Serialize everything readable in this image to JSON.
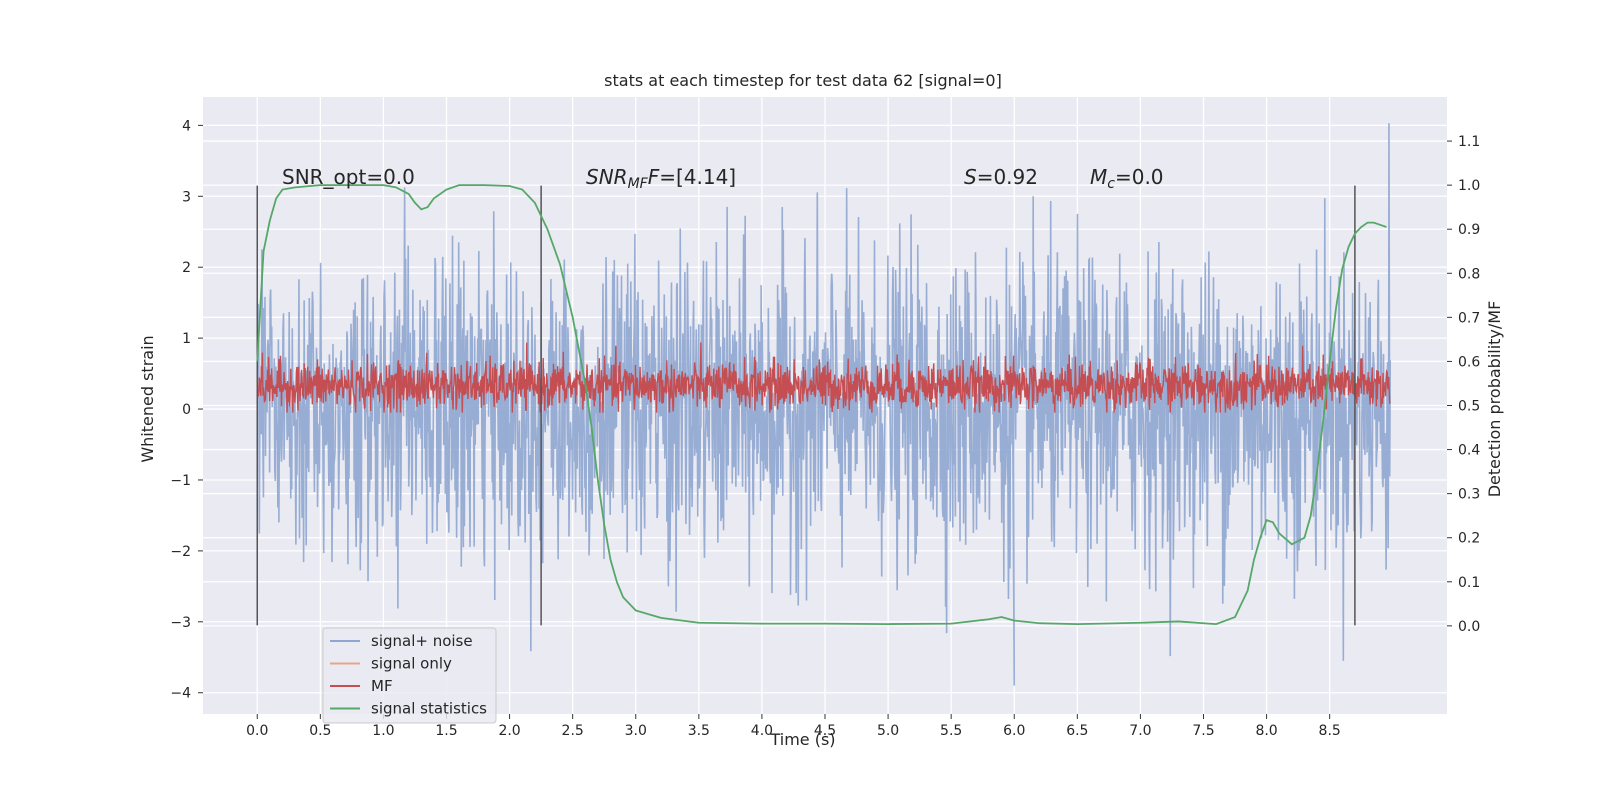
{
  "chart_data": {
    "type": "line",
    "title": "stats at each timestep for test data 62 [signal=0]",
    "xlabel": "Time (s)",
    "ylabel_left": "Whitened strain",
    "ylabel_right": "Detection probability/MF",
    "xlim": [
      -0.43,
      9.43
    ],
    "ylim_left": [
      -4.3,
      4.4
    ],
    "ylim_right": [
      -0.2,
      1.2
    ],
    "x_ticks": [
      0.0,
      0.5,
      1.0,
      1.5,
      2.0,
      2.5,
      3.0,
      3.5,
      4.0,
      4.5,
      5.0,
      5.5,
      6.0,
      6.5,
      7.0,
      7.5,
      8.0,
      8.5
    ],
    "x_tick_labels": [
      "0.0",
      "0.5",
      "1.0",
      "1.5",
      "2.0",
      "2.5",
      "3.0",
      "3.5",
      "4.0",
      "4.5",
      "5.0",
      "5.5",
      "6.0",
      "6.5",
      "7.0",
      "7.5",
      "8.0",
      "8.5"
    ],
    "y_ticks_left": [
      4,
      3,
      2,
      1,
      0,
      -1,
      -2,
      -3,
      -4
    ],
    "y_tick_labels_left": [
      "4",
      "3",
      "2",
      "1",
      "0",
      "−1",
      "−2",
      "−3",
      "−4"
    ],
    "y_ticks_right": [
      1.1,
      1.0,
      0.9,
      0.8,
      0.7,
      0.6,
      0.5,
      0.4,
      0.3,
      0.2,
      0.1,
      0.0
    ],
    "y_tick_labels_right": [
      "1.1",
      "1.0",
      "0.9",
      "0.8",
      "0.7",
      "0.6",
      "0.5",
      "0.4",
      "0.3",
      "0.2",
      "0.1",
      "0.0"
    ],
    "grid": true,
    "legend_placement": "lower-left",
    "legend": [
      {
        "name": "signal+ noise",
        "color": "#8fa6d0"
      },
      {
        "name": "signal only",
        "color": "#e8a58c"
      },
      {
        "name": "MF",
        "color": "#c44e52"
      },
      {
        "name": "signal statistics",
        "color": "#55a868"
      }
    ],
    "annotations": {
      "snr_opt": "SNR_opt=0.0",
      "snr_mf_prefix": "SNR",
      "snr_mf_sub": "MF",
      "snr_mf_value": "=[4.14]",
      "s_prefix": "S",
      "s_value": "=0.92",
      "mc_prefix": "M",
      "mc_sub": "c",
      "mc_value": "=0.0"
    },
    "vertical_markers_x": [
      0.0,
      2.25,
      8.7
    ],
    "series": [
      {
        "name": "signal+ noise",
        "axis": "left",
        "x_range": [
          0.0,
          8.98
        ],
        "typical_range": [
          -1.3,
          1.3
        ],
        "max": 4.03,
        "min": -3.9
      },
      {
        "name": "MF",
        "axis": "left",
        "x_range": [
          0.0,
          8.98
        ],
        "typical_range": [
          0.05,
          0.65
        ],
        "max": 1.1,
        "min": -0.05
      },
      {
        "name": "signal statistics",
        "axis": "right",
        "x": [
          0.0,
          0.05,
          0.1,
          0.15,
          0.2,
          0.3,
          0.5,
          0.7,
          1.0,
          1.1,
          1.2,
          1.25,
          1.3,
          1.35,
          1.4,
          1.5,
          1.6,
          1.8,
          2.0,
          2.1,
          2.2,
          2.3,
          2.4,
          2.5,
          2.6,
          2.65,
          2.7,
          2.75,
          2.8,
          2.85,
          2.9,
          3.0,
          3.2,
          3.5,
          4.0,
          4.5,
          5.0,
          5.5,
          5.8,
          5.9,
          6.0,
          6.2,
          6.5,
          7.0,
          7.3,
          7.6,
          7.75,
          7.85,
          7.9,
          7.95,
          8.0,
          8.05,
          8.1,
          8.2,
          8.3,
          8.35,
          8.4,
          8.45,
          8.5,
          8.55,
          8.6,
          8.65,
          8.7,
          8.75,
          8.8,
          8.85,
          8.9,
          8.95
        ],
        "values": [
          0.6,
          0.85,
          0.92,
          0.97,
          0.99,
          0.995,
          1.0,
          1.0,
          1.0,
          0.995,
          0.98,
          0.96,
          0.945,
          0.95,
          0.97,
          0.99,
          1.0,
          1.0,
          0.998,
          0.99,
          0.96,
          0.9,
          0.82,
          0.7,
          0.55,
          0.45,
          0.33,
          0.23,
          0.15,
          0.1,
          0.065,
          0.035,
          0.018,
          0.007,
          0.005,
          0.005,
          0.004,
          0.005,
          0.015,
          0.02,
          0.012,
          0.006,
          0.004,
          0.007,
          0.01,
          0.004,
          0.02,
          0.08,
          0.15,
          0.2,
          0.24,
          0.235,
          0.21,
          0.185,
          0.2,
          0.25,
          0.35,
          0.47,
          0.6,
          0.72,
          0.81,
          0.86,
          0.89,
          0.905,
          0.915,
          0.915,
          0.91,
          0.905
        ]
      }
    ]
  },
  "colors": {
    "plot_bg": "#eaeaf2",
    "grid": "#ffffff",
    "noise": "#8fa6d0",
    "signal_only": "#e8a58c",
    "mf": "#c44e52",
    "stat": "#55a868",
    "marker": "#555555"
  }
}
